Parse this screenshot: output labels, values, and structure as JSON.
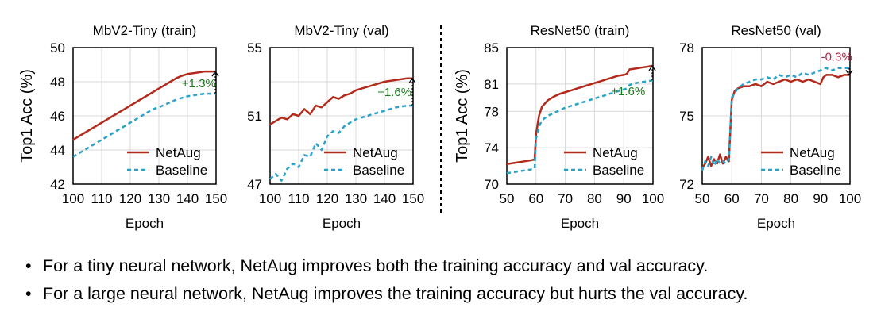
{
  "colors": {
    "netaug": "#b22a1c",
    "baseline": "#2aa3c9",
    "gain": "#1a7a1a",
    "loss": "#b02a4a"
  },
  "chart_data": [
    {
      "type": "line",
      "title": "MbV2-Tiny (train)",
      "xlabel": "Epoch",
      "ylabel": "Top1 Acc (%)",
      "xlim": [
        100,
        150
      ],
      "ylim": [
        42,
        50
      ],
      "xticks": [
        100,
        110,
        120,
        130,
        140,
        150
      ],
      "yticks": [
        42,
        44,
        46,
        48,
        50
      ],
      "legend": {
        "position": "bottom-right"
      },
      "annotation": {
        "text": "+1.3%",
        "color_key": "gain",
        "x": 150,
        "y_from": 47.3,
        "y_to": 48.6,
        "label_x": 144,
        "label_y": 47.9
      },
      "series": [
        {
          "name": "NetAug",
          "style": "solid",
          "color_key": "netaug",
          "x": [
            100,
            102,
            104,
            106,
            108,
            110,
            112,
            114,
            116,
            118,
            120,
            122,
            124,
            126,
            128,
            130,
            132,
            134,
            136,
            138,
            140,
            142,
            144,
            146,
            148,
            150
          ],
          "y": [
            44.6,
            44.8,
            45.0,
            45.2,
            45.4,
            45.6,
            45.8,
            46.0,
            46.2,
            46.4,
            46.6,
            46.8,
            47.0,
            47.2,
            47.4,
            47.6,
            47.8,
            48.0,
            48.2,
            48.35,
            48.45,
            48.5,
            48.55,
            48.6,
            48.6,
            48.6
          ]
        },
        {
          "name": "Baseline",
          "style": "dashed",
          "color_key": "baseline",
          "x": [
            100,
            102,
            104,
            106,
            108,
            110,
            112,
            114,
            116,
            118,
            120,
            122,
            124,
            126,
            128,
            130,
            132,
            134,
            136,
            138,
            140,
            142,
            144,
            146,
            148,
            150
          ],
          "y": [
            43.6,
            43.8,
            44.0,
            44.2,
            44.4,
            44.6,
            44.8,
            45.0,
            45.2,
            45.4,
            45.6,
            45.8,
            46.0,
            46.2,
            46.4,
            46.5,
            46.65,
            46.8,
            46.95,
            47.05,
            47.15,
            47.2,
            47.25,
            47.3,
            47.3,
            47.3
          ]
        }
      ]
    },
    {
      "type": "line",
      "title": "MbV2-Tiny (val)",
      "xlabel": "Epoch",
      "ylabel": "",
      "xlim": [
        100,
        150
      ],
      "ylim": [
        47,
        55
      ],
      "yticks_labels": [
        47,
        51,
        55
      ],
      "xticks": [
        100,
        110,
        120,
        130,
        140,
        150
      ],
      "yticks": [
        47,
        49,
        51,
        53,
        55
      ],
      "legend": {
        "position": "bottom-right"
      },
      "annotation": {
        "text": "+1.6%",
        "color_key": "gain",
        "x": 150,
        "y_from": 51.6,
        "y_to": 53.2,
        "label_x": 143.5,
        "label_y": 52.4
      },
      "series": [
        {
          "name": "NetAug",
          "style": "solid",
          "color_key": "netaug",
          "x": [
            100,
            102,
            104,
            106,
            108,
            110,
            112,
            114,
            116,
            118,
            120,
            122,
            124,
            126,
            128,
            130,
            132,
            134,
            136,
            138,
            140,
            142,
            144,
            146,
            148,
            150
          ],
          "y": [
            50.5,
            50.7,
            50.9,
            50.8,
            51.1,
            51.0,
            51.4,
            51.1,
            51.6,
            51.5,
            51.8,
            52.1,
            52.0,
            52.2,
            52.3,
            52.5,
            52.6,
            52.7,
            52.8,
            52.9,
            53.0,
            53.05,
            53.1,
            53.15,
            53.2,
            53.2
          ]
        },
        {
          "name": "Baseline",
          "style": "dashed",
          "color_key": "baseline",
          "x": [
            100,
            102,
            104,
            106,
            108,
            110,
            112,
            114,
            116,
            118,
            120,
            122,
            124,
            126,
            128,
            130,
            132,
            134,
            136,
            138,
            140,
            142,
            144,
            146,
            148,
            150
          ],
          "y": [
            47.3,
            47.6,
            47.2,
            47.9,
            48.2,
            48.0,
            48.7,
            48.6,
            49.4,
            49.0,
            49.8,
            50.1,
            50.0,
            50.4,
            50.6,
            50.8,
            50.9,
            51.0,
            51.1,
            51.2,
            51.3,
            51.4,
            51.5,
            51.55,
            51.6,
            51.6
          ]
        }
      ]
    },
    {
      "type": "line",
      "title": "ResNet50 (train)",
      "xlabel": "Epoch",
      "ylabel": "Top1 Acc (%)",
      "xlim": [
        50,
        100
      ],
      "ylim": [
        70,
        85
      ],
      "xticks": [
        50,
        60,
        70,
        80,
        90,
        100
      ],
      "yticks": [
        70,
        74,
        78,
        81,
        85
      ],
      "legend": {
        "position": "bottom-right"
      },
      "annotation": {
        "text": "+1.6%",
        "color_key": "gain",
        "x": 100,
        "y_from": 81.4,
        "y_to": 83.0,
        "label_x": 91.5,
        "label_y": 80.2
      },
      "series": [
        {
          "name": "NetAug",
          "style": "solid",
          "color_key": "netaug",
          "x": [
            50,
            52,
            54,
            56,
            58,
            59.5,
            60,
            61,
            62,
            64,
            66,
            68,
            70,
            72,
            74,
            76,
            78,
            80,
            82,
            84,
            86,
            88,
            90,
            91,
            92,
            94,
            96,
            98,
            100
          ],
          "y": [
            72.2,
            72.3,
            72.4,
            72.5,
            72.6,
            72.7,
            75.5,
            77.5,
            78.5,
            79.2,
            79.6,
            79.9,
            80.1,
            80.3,
            80.5,
            80.7,
            80.9,
            81.1,
            81.3,
            81.5,
            81.7,
            81.9,
            82.0,
            82.1,
            82.6,
            82.7,
            82.8,
            82.9,
            83.0
          ]
        },
        {
          "name": "Baseline",
          "style": "dashed",
          "color_key": "baseline",
          "x": [
            50,
            52,
            54,
            56,
            58,
            59.5,
            60,
            61,
            62,
            64,
            66,
            68,
            70,
            72,
            74,
            76,
            78,
            80,
            82,
            84,
            86,
            88,
            90,
            91,
            92,
            94,
            96,
            98,
            100
          ],
          "y": [
            71.2,
            71.3,
            71.4,
            71.5,
            71.6,
            71.7,
            75.0,
            76.3,
            77.0,
            77.5,
            77.8,
            78.1,
            78.4,
            78.6,
            78.8,
            79.0,
            79.2,
            79.4,
            79.6,
            79.8,
            80.0,
            80.2,
            80.4,
            80.5,
            80.9,
            81.1,
            81.2,
            81.3,
            81.4
          ]
        }
      ]
    },
    {
      "type": "line",
      "title": "ResNet50 (val)",
      "xlabel": "Epoch",
      "ylabel": "",
      "xlim": [
        50,
        100
      ],
      "ylim": [
        72,
        78
      ],
      "xticks": [
        50,
        60,
        70,
        80,
        90,
        100
      ],
      "yticks": [
        72,
        75,
        78
      ],
      "legend": {
        "position": "bottom-right"
      },
      "annotation": {
        "text": "-0.3%",
        "color_key": "loss",
        "x": 100,
        "y_from": 77.1,
        "y_to": 76.8,
        "label_x": 95.5,
        "label_y": 77.6
      },
      "series": [
        {
          "name": "NetAug",
          "style": "solid",
          "color_key": "netaug",
          "x": [
            50,
            51,
            52,
            53,
            54,
            55,
            56,
            57,
            58,
            59,
            60,
            61,
            62,
            64,
            66,
            68,
            70,
            72,
            74,
            76,
            78,
            80,
            82,
            84,
            86,
            88,
            90,
            91,
            92,
            94,
            96,
            98,
            100
          ],
          "y": [
            72.7,
            72.9,
            73.2,
            72.8,
            73.1,
            72.9,
            73.3,
            72.9,
            73.2,
            73.0,
            75.7,
            76.1,
            76.2,
            76.3,
            76.3,
            76.4,
            76.3,
            76.5,
            76.4,
            76.5,
            76.6,
            76.5,
            76.6,
            76.5,
            76.6,
            76.5,
            76.4,
            76.7,
            76.8,
            76.8,
            76.7,
            76.8,
            76.8
          ]
        },
        {
          "name": "Baseline",
          "style": "dashed",
          "color_key": "baseline",
          "x": [
            50,
            51,
            52,
            53,
            54,
            55,
            56,
            57,
            58,
            59,
            60,
            61,
            62,
            64,
            66,
            68,
            70,
            72,
            74,
            76,
            78,
            80,
            82,
            84,
            86,
            88,
            90,
            91,
            92,
            94,
            96,
            98,
            100
          ],
          "y": [
            72.6,
            73.0,
            72.8,
            73.2,
            72.8,
            73.1,
            72.9,
            73.0,
            72.9,
            73.1,
            75.8,
            76.0,
            76.2,
            76.4,
            76.5,
            76.6,
            76.6,
            76.7,
            76.6,
            76.8,
            76.7,
            76.8,
            76.7,
            76.9,
            76.8,
            76.9,
            77.0,
            77.1,
            77.1,
            77.0,
            77.1,
            77.1,
            77.1
          ]
        }
      ]
    }
  ],
  "bullets": [
    {
      "marker": "•",
      "text": "For a tiny neural network, NetAug improves both the training accuracy and val accuracy."
    },
    {
      "marker": "•",
      "text": "For a large neural network, NetAug improves the training accuracy but hurts the val accuracy."
    }
  ]
}
